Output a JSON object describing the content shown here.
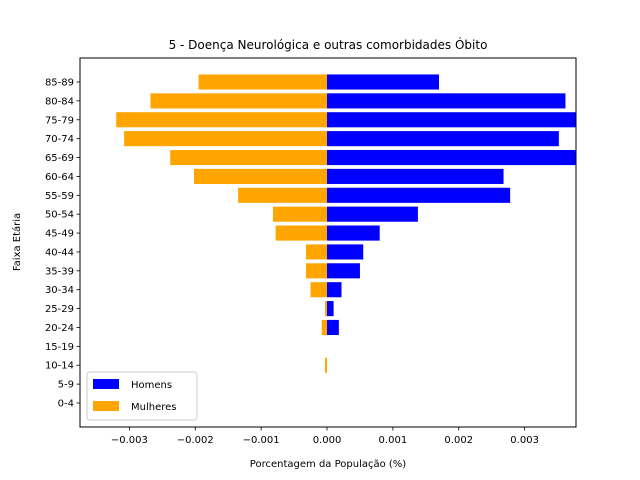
{
  "chart_data": {
    "type": "bar",
    "orientation": "horizontal",
    "title": "5 - Doença Neurológica e outras comorbidades Óbito",
    "xlabel": "Porcentagem da População (%)",
    "ylabel": "Faixa Etária",
    "categories": [
      "0-4",
      "5-9",
      "10-14",
      "15-19",
      "20-24",
      "25-29",
      "30-34",
      "35-39",
      "40-44",
      "45-49",
      "50-54",
      "55-59",
      "60-64",
      "65-69",
      "70-74",
      "75-79",
      "80-84",
      "85-89"
    ],
    "series": [
      {
        "name": "Homens",
        "color": "#0000ff",
        "values": [
          0,
          0,
          0,
          0,
          0.00018,
          0.0001,
          0.00022,
          0.0005,
          0.00055,
          0.0008,
          0.00138,
          0.00278,
          0.00268,
          0.00378,
          0.00352,
          0.00378,
          0.00362,
          0.0017
        ]
      },
      {
        "name": "Mulheres",
        "color": "#ffa500",
        "values": [
          0,
          0,
          -3e-05,
          0,
          -8e-05,
          -3e-05,
          -0.00025,
          -0.00032,
          -0.00032,
          -0.00078,
          -0.00082,
          -0.00135,
          -0.00202,
          -0.00238,
          -0.00308,
          -0.0032,
          -0.00268,
          -0.00195
        ]
      }
    ],
    "xlim": [
      -0.00375,
      0.00378
    ],
    "xticks": [
      -0.003,
      -0.002,
      -0.001,
      0.0,
      0.001,
      0.002,
      0.003
    ],
    "xtick_labels": [
      "−0.003",
      "−0.002",
      "−0.001",
      "0.000",
      "0.001",
      "0.002",
      "0.003"
    ],
    "legend": {
      "position": "lower-left",
      "entries": [
        "Homens",
        "Mulheres"
      ]
    },
    "grid": false
  }
}
